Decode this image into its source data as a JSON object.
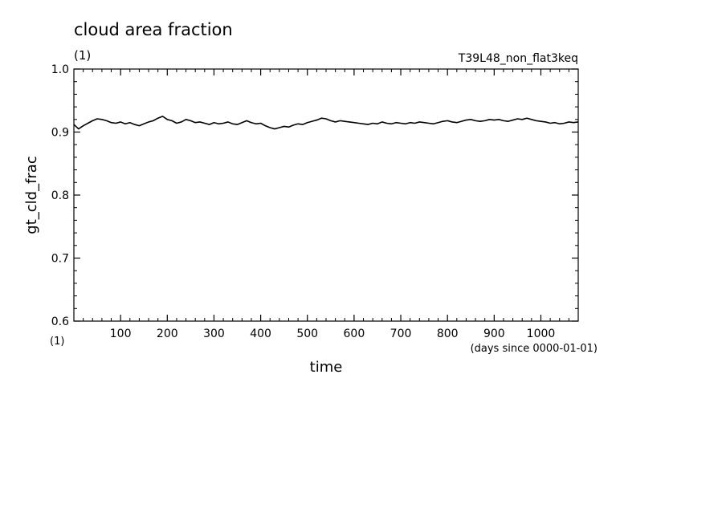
{
  "chart_data": {
    "type": "line",
    "title": "cloud area fraction",
    "units_label": "(1)",
    "dataset_label": "T39L48_non_flat3keq",
    "ylabel": "gt_cld_frac",
    "xlabel": "time",
    "x_units": "(days since 0000-01-01)",
    "y_units": "(1)",
    "xlim": [
      0,
      1080
    ],
    "ylim": [
      0.6,
      1.0
    ],
    "x_ticks": [
      100,
      200,
      300,
      400,
      500,
      600,
      700,
      800,
      900,
      1000
    ],
    "x_tick_labels": [
      "100",
      "200",
      "300",
      "400",
      "500",
      "600",
      "700",
      "800",
      "900",
      "1000"
    ],
    "y_ticks": [
      0.6,
      0.7,
      0.8,
      0.9,
      1.0
    ],
    "y_tick_labels": [
      "0.6",
      "0.7",
      "0.8",
      "0.9",
      "1.0"
    ],
    "grid": false,
    "series": [
      {
        "color": "#000000",
        "x": [
          0,
          10,
          20,
          30,
          40,
          50,
          60,
          70,
          80,
          90,
          100,
          110,
          120,
          130,
          140,
          150,
          160,
          170,
          180,
          190,
          200,
          210,
          220,
          230,
          240,
          250,
          260,
          270,
          280,
          290,
          300,
          310,
          320,
          330,
          340,
          350,
          360,
          370,
          380,
          390,
          400,
          410,
          420,
          430,
          440,
          450,
          460,
          470,
          480,
          490,
          500,
          510,
          520,
          530,
          540,
          550,
          560,
          570,
          580,
          590,
          600,
          610,
          620,
          630,
          640,
          650,
          660,
          670,
          680,
          690,
          700,
          710,
          720,
          730,
          740,
          750,
          760,
          770,
          780,
          790,
          800,
          810,
          820,
          830,
          840,
          850,
          860,
          870,
          880,
          890,
          900,
          910,
          920,
          930,
          940,
          950,
          960,
          970,
          980,
          990,
          1000,
          1010,
          1020,
          1030,
          1040,
          1050,
          1060,
          1070,
          1080
        ],
        "values": [
          0.912,
          0.905,
          0.91,
          0.914,
          0.918,
          0.921,
          0.92,
          0.918,
          0.915,
          0.914,
          0.916,
          0.913,
          0.915,
          0.912,
          0.91,
          0.913,
          0.916,
          0.918,
          0.922,
          0.925,
          0.92,
          0.918,
          0.914,
          0.916,
          0.92,
          0.918,
          0.915,
          0.916,
          0.914,
          0.912,
          0.915,
          0.913,
          0.914,
          0.916,
          0.913,
          0.912,
          0.915,
          0.918,
          0.915,
          0.913,
          0.914,
          0.91,
          0.907,
          0.905,
          0.907,
          0.909,
          0.908,
          0.911,
          0.913,
          0.912,
          0.915,
          0.917,
          0.919,
          0.922,
          0.921,
          0.918,
          0.916,
          0.918,
          0.917,
          0.916,
          0.915,
          0.914,
          0.913,
          0.912,
          0.914,
          0.913,
          0.916,
          0.914,
          0.913,
          0.915,
          0.914,
          0.913,
          0.915,
          0.914,
          0.916,
          0.915,
          0.914,
          0.913,
          0.915,
          0.917,
          0.918,
          0.916,
          0.915,
          0.917,
          0.919,
          0.92,
          0.918,
          0.917,
          0.918,
          0.92,
          0.919,
          0.92,
          0.918,
          0.917,
          0.919,
          0.921,
          0.92,
          0.922,
          0.92,
          0.918,
          0.917,
          0.916,
          0.914,
          0.915,
          0.913,
          0.914,
          0.916,
          0.915,
          0.916
        ]
      }
    ]
  }
}
